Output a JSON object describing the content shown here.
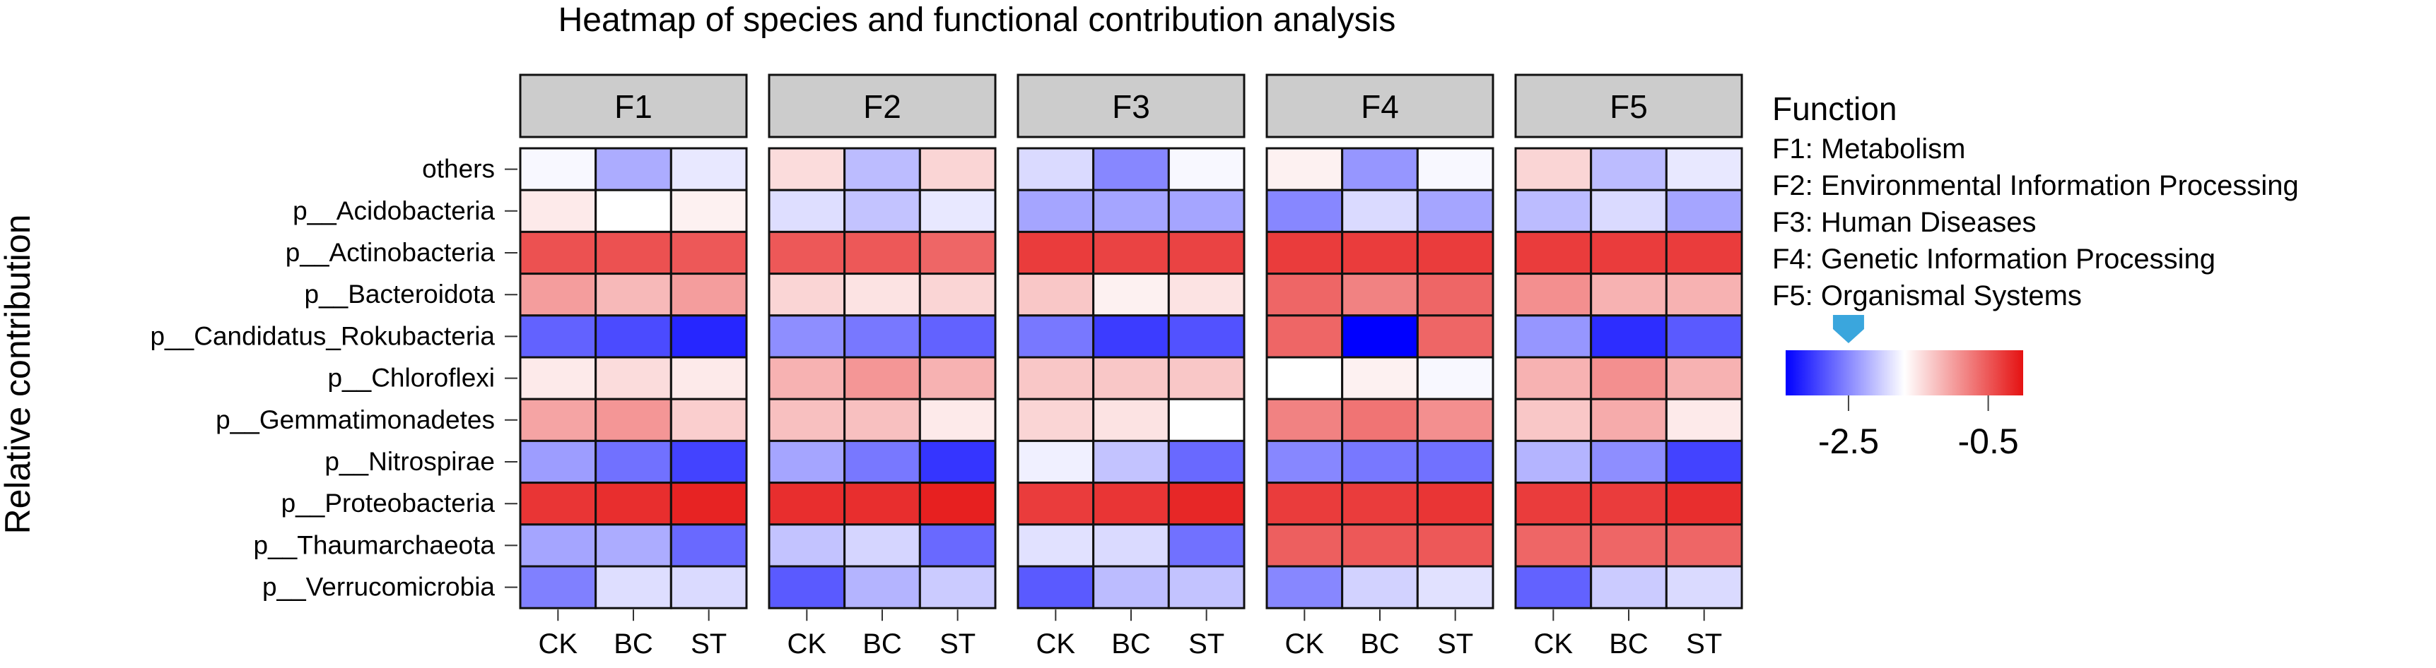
{
  "chart_data": {
    "type": "heatmap",
    "title": "Heatmap of species and functional contribution analysis",
    "ylabel": "Relative contribution",
    "facets": [
      "F1",
      "F2",
      "F3",
      "F4",
      "F5"
    ],
    "x_categories": [
      "CK",
      "BC",
      "ST"
    ],
    "rows": [
      "others",
      "p__Acidobacteria",
      "p__Actinobacteria",
      "p__Bacteroidota",
      "p__Candidatus_Rokubacteria",
      "p__Chloroflexi",
      "p__Gemmatimonadetes",
      "p__Nitrospirae",
      "p__Proteobacteria",
      "p__Thaumarchaeota",
      "p__Verrucomicrobia"
    ],
    "value_range": [
      -3.4,
      0
    ],
    "values": {
      "F1": [
        [
          -1.75,
          -2.25,
          -1.85
        ],
        [
          -1.55,
          -1.7,
          -1.6
        ],
        [
          -0.45,
          -0.45,
          -0.5
        ],
        [
          -1.0,
          -1.2,
          -1.0
        ],
        [
          -2.75,
          -2.9,
          -3.15
        ],
        [
          -1.55,
          -1.45,
          -1.55
        ],
        [
          -1.05,
          -0.95,
          -1.35
        ],
        [
          -2.35,
          -2.65,
          -2.95
        ],
        [
          -0.25,
          -0.2,
          -0.12
        ],
        [
          -2.3,
          -2.25,
          -2.7
        ],
        [
          -2.55,
          -1.92,
          -1.95
        ]
      ],
      "F2": [
        [
          -1.45,
          -2.15,
          -1.4
        ],
        [
          -1.92,
          -2.1,
          -1.85
        ],
        [
          -0.5,
          -0.5,
          -0.6
        ],
        [
          -1.4,
          -1.5,
          -1.4
        ],
        [
          -2.45,
          -2.6,
          -2.75
        ],
        [
          -1.15,
          -0.95,
          -1.15
        ],
        [
          -1.25,
          -1.25,
          -1.55
        ],
        [
          -2.3,
          -2.6,
          -3.05
        ],
        [
          -0.2,
          -0.2,
          -0.1
        ],
        [
          -2.1,
          -1.98,
          -2.7
        ],
        [
          -2.8,
          -2.2,
          -2.05
        ]
      ],
      "F3": [
        [
          -1.95,
          -2.5,
          -1.75
        ],
        [
          -2.3,
          -2.3,
          -2.3
        ],
        [
          -0.3,
          -0.35,
          -0.35
        ],
        [
          -1.3,
          -1.6,
          -1.5
        ],
        [
          -2.6,
          -3.0,
          -2.85
        ],
        [
          -1.3,
          -1.3,
          -1.3
        ],
        [
          -1.4,
          -1.5,
          -1.7
        ],
        [
          -1.8,
          -2.1,
          -2.7
        ],
        [
          -0.3,
          -0.25,
          -0.15
        ],
        [
          -1.9,
          -1.95,
          -2.65
        ],
        [
          -2.8,
          -2.15,
          -2.1
        ]
      ],
      "F4": [
        [
          -1.6,
          -2.4,
          -1.75
        ],
        [
          -2.5,
          -1.95,
          -2.3
        ],
        [
          -0.3,
          -0.3,
          -0.3
        ],
        [
          -0.6,
          -0.8,
          -0.6
        ],
        [
          -0.6,
          -3.4,
          -0.6
        ],
        [
          -1.7,
          -1.6,
          -1.75
        ],
        [
          -0.8,
          -0.7,
          -0.9
        ],
        [
          -2.5,
          -2.6,
          -2.65
        ],
        [
          -0.3,
          -0.3,
          -0.25
        ],
        [
          -0.55,
          -0.5,
          -0.5
        ],
        [
          -2.5,
          -2.0,
          -1.9
        ]
      ],
      "F5": [
        [
          -1.4,
          -2.15,
          -1.85
        ],
        [
          -2.15,
          -1.95,
          -2.3
        ],
        [
          -0.3,
          -0.3,
          -0.3
        ],
        [
          -0.9,
          -1.15,
          -1.15
        ],
        [
          -2.4,
          -3.1,
          -2.8
        ],
        [
          -1.15,
          -0.9,
          -1.15
        ],
        [
          -1.3,
          -1.1,
          -1.55
        ],
        [
          -2.2,
          -2.45,
          -2.95
        ],
        [
          -0.3,
          -0.3,
          -0.2
        ],
        [
          -0.6,
          -0.6,
          -0.6
        ],
        [
          -2.75,
          -2.05,
          -1.95
        ]
      ]
    },
    "legend": {
      "title": "Function",
      "items": [
        "F1: Metabolism",
        "F2: Environmental Information Processing",
        "F3: Human Diseases",
        "F4: Genetic Information Processing",
        "F5: Organismal Systems"
      ],
      "colorbar_ticks": [
        -2.5,
        -0.5
      ],
      "colorbar_tick_labels": [
        "-2.5",
        "-0.5"
      ],
      "marker_value": -2.5,
      "colors": {
        "low": "#0000ff",
        "mid": "#ffffff",
        "high": "#e51212"
      },
      "marker_color": "#3aa6dd"
    }
  }
}
